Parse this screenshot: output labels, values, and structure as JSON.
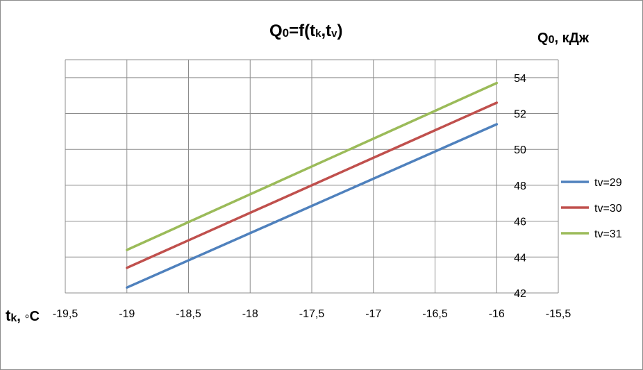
{
  "chart_data": {
    "type": "line",
    "title": "Q0=f(tk,tv)",
    "title_parts": {
      "main": "Q",
      "main_sub": "0",
      "mid": "=f(t",
      "sub1": "k",
      "comma": ",t",
      "sub2": "v",
      "close": ")"
    },
    "xlabel": "tk, ◦C",
    "xlabel_parts": {
      "main": "t",
      "sub": "k",
      "rest": ", ◦C"
    },
    "ylabel": "Q0, кДж",
    "ylabel_parts": {
      "main": "Q",
      "sub": "0",
      "rest": ", кДж"
    },
    "x_ticks": [
      "-19,5",
      "-19",
      "-18,5",
      "-18",
      "-17,5",
      "-17",
      "-16,5",
      "-16",
      "-15,5"
    ],
    "x_tick_values": [
      -19.5,
      -19,
      -18.5,
      -18,
      -17.5,
      -17,
      -16.5,
      -16,
      -15.5
    ],
    "y_ticks": [
      "42",
      "44",
      "46",
      "48",
      "50",
      "52",
      "54"
    ],
    "y_tick_values": [
      42,
      44,
      46,
      48,
      50,
      52,
      54
    ],
    "xlim": [
      -19.5,
      -15.5
    ],
    "ylim": [
      42,
      55
    ],
    "y_axis_side": "right",
    "grid": true,
    "legend_position": "right",
    "series": [
      {
        "name": "tv=29",
        "color": "#4f81bd",
        "x": [
          -19,
          -16
        ],
        "values": [
          42.3,
          51.4
        ]
      },
      {
        "name": "tv=30",
        "color": "#c0504d",
        "x": [
          -19,
          -16
        ],
        "values": [
          43.4,
          52.6
        ]
      },
      {
        "name": "tv=31",
        "color": "#9bbb59",
        "x": [
          -19,
          -16
        ],
        "values": [
          44.4,
          53.7
        ]
      }
    ]
  }
}
